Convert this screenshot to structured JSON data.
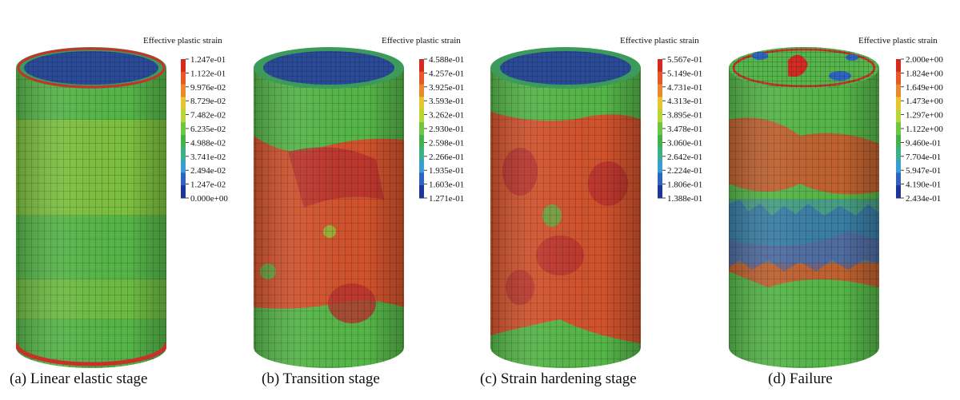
{
  "figures": [
    {
      "caption": "(a) Linear elastic stage",
      "legend_title": "Effective plastic strain",
      "legend_values": [
        "1.247e-01",
        "1.122e-01",
        "9.976e-02",
        "8.729e-02",
        "7.482e-02",
        "6.235e-02",
        "4.988e-02",
        "3.741e-02",
        "2.494e-02",
        "1.247e-02",
        "0.000e+00"
      ]
    },
    {
      "caption": "(b) Transition stage",
      "legend_title": "Effective plastic strain",
      "legend_values": [
        "4.588e-01",
        "4.257e-01",
        "3.925e-01",
        "3.593e-01",
        "3.262e-01",
        "2.930e-01",
        "2.598e-01",
        "2.266e-01",
        "1.935e-01",
        "1.603e-01",
        "1.271e-01"
      ]
    },
    {
      "caption": "(c) Strain hardening stage",
      "legend_title": "Effective plastic strain",
      "legend_values": [
        "5.567e-01",
        "5.149e-01",
        "4.731e-01",
        "4.313e-01",
        "3.895e-01",
        "3.478e-01",
        "3.060e-01",
        "2.642e-01",
        "2.224e-01",
        "1.806e-01",
        "1.388e-01"
      ]
    },
    {
      "caption": "(d) Failure",
      "legend_title": "Effective plastic strain",
      "legend_values": [
        "2.000e+00",
        "1.824e+00",
        "1.649e+00",
        "1.473e+00",
        "1.297e+00",
        "1.122e+00",
        "9.460e-01",
        "7.704e-01",
        "5.947e-01",
        "4.190e-01",
        "2.434e-01"
      ]
    }
  ],
  "colorbar": [
    "#d42a22",
    "#e4582a",
    "#e88a2c",
    "#e6c630",
    "#b6d63a",
    "#72c444",
    "#46b04c",
    "#3fae8a",
    "#3a9fd0",
    "#2f63c0",
    "#1f3596"
  ],
  "mesh_colors": {
    "top_blue": "#27458f",
    "body_green": "#55b548",
    "body_yellow_green": "#8cc43a",
    "body_red": "#cf4a2c",
    "body_dark_red": "#b8302e",
    "rim_red": "#c8302a"
  }
}
